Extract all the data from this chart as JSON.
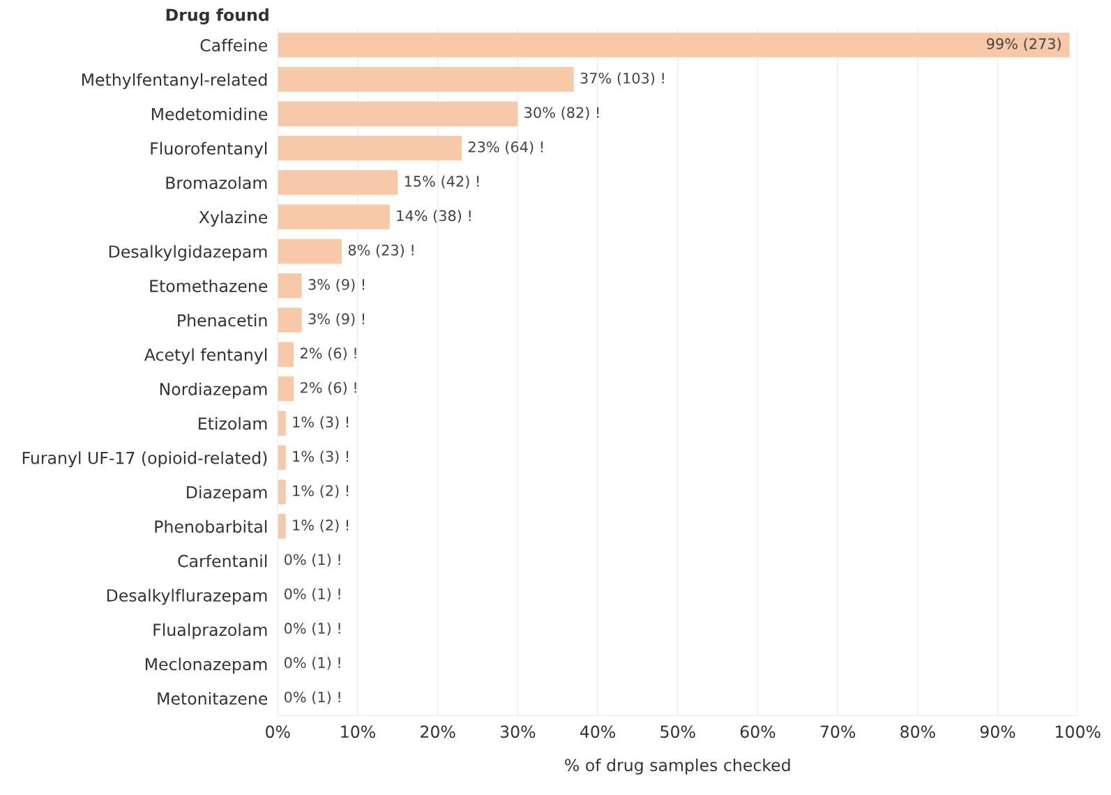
{
  "chart_data": {
    "type": "bar",
    "orientation": "horizontal",
    "ylabel": "Drug found",
    "xlabel": "% of drug samples checked",
    "categories": [
      "Caffeine",
      "Methylfentanyl-related",
      "Medetomidine",
      "Fluorofentanyl",
      "Bromazolam",
      "Xylazine",
      "Desalkylgidazepam",
      "Etomethazene",
      "Phenacetin",
      "Acetyl fentanyl",
      "Nordiazepam",
      "Etizolam",
      "Furanyl UF-17 (opioid-related)",
      "Diazepam",
      "Phenobarbital",
      "Carfentanil",
      "Desalkylflurazepam",
      "Flualprazolam",
      "Meclonazepam",
      "Metonitazene"
    ],
    "values": [
      99,
      37,
      30,
      23,
      15,
      14,
      8,
      3,
      3,
      2,
      2,
      1,
      1,
      1,
      1,
      0,
      0,
      0,
      0,
      0
    ],
    "value_labels": [
      "99% (273)",
      "37% (103) !",
      "30% (82) !",
      "23% (64) !",
      "15% (42) !",
      "14% (38) !",
      "8% (23) !",
      "3% (9) !",
      "3% (9) !",
      "2% (6) !",
      "2% (6) !",
      "1% (3) !",
      "1% (3) !",
      "1% (2) !",
      "1% (2) !",
      "0% (1) !",
      "0% (1) !",
      "0% (1) !",
      "0% (1) !",
      "0% (1) !"
    ],
    "color": "#f7c9a9",
    "xlim": [
      0,
      100
    ],
    "xticks": [
      {
        "value": 0,
        "label": "0%"
      },
      {
        "value": 10,
        "label": "10%"
      },
      {
        "value": 20,
        "label": "20%"
      },
      {
        "value": 30,
        "label": "30%"
      },
      {
        "value": 40,
        "label": "40%"
      },
      {
        "value": 50,
        "label": "50%"
      },
      {
        "value": 60,
        "label": "60%"
      },
      {
        "value": 70,
        "label": "70%"
      },
      {
        "value": 80,
        "label": "80%"
      },
      {
        "value": 90,
        "label": "90%"
      },
      {
        "value": 100,
        "label": "100%"
      }
    ],
    "grid": "x",
    "legend": false
  }
}
